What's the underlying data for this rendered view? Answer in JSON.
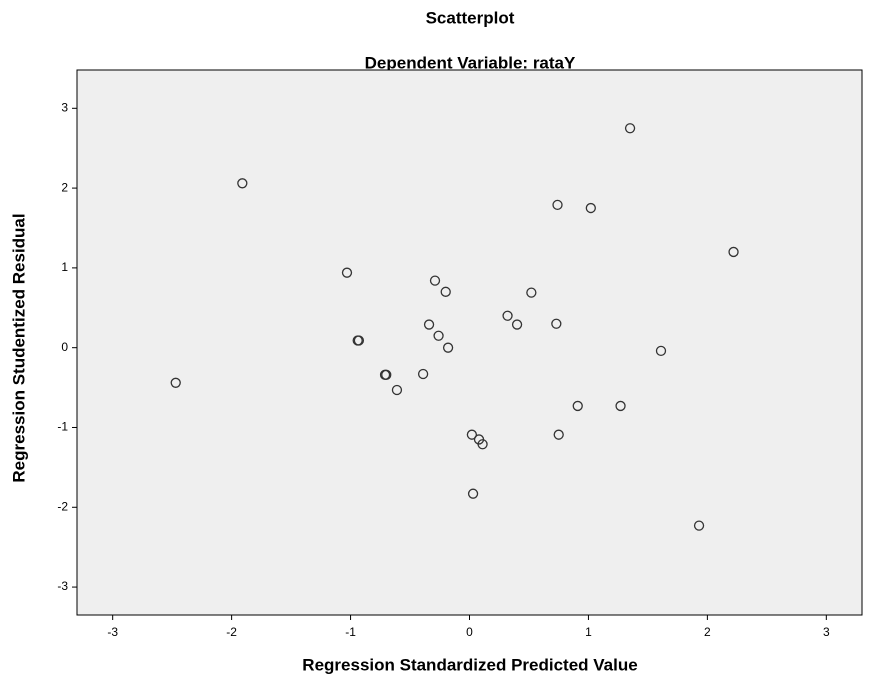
{
  "chart_data": {
    "type": "scatter",
    "title": "Scatterplot",
    "subtitle": "Dependent Variable: rataY",
    "x_label": "Regression Standardized Predicted Value",
    "y_label": "Regression Studentized Residual",
    "x": [
      -2.47,
      -1.91,
      -1.03,
      -0.94,
      -0.93,
      -0.71,
      -0.7,
      -0.61,
      -0.39,
      -0.34,
      -0.29,
      -0.26,
      -0.2,
      -0.18,
      0.02,
      0.03,
      0.08,
      0.11,
      0.32,
      0.4,
      0.52,
      0.73,
      0.74,
      0.75,
      0.91,
      1.02,
      1.27,
      1.35,
      1.61,
      1.93,
      2.22
    ],
    "values": [
      -0.44,
      2.06,
      0.94,
      0.09,
      0.09,
      -0.34,
      -0.34,
      -0.53,
      -0.33,
      0.29,
      0.84,
      0.15,
      0.7,
      0.0,
      -1.09,
      -1.83,
      -1.15,
      -1.21,
      0.4,
      0.29,
      0.69,
      0.3,
      1.79,
      -1.09,
      -0.73,
      1.75,
      -0.73,
      2.75,
      -0.04,
      -2.23,
      1.2
    ],
    "color": "#333333",
    "plot_background": "#efefef",
    "xlim": [
      -3.3,
      3.3
    ],
    "ylim": [
      -3.35,
      3.48
    ],
    "xticks": [
      -3,
      -2,
      -1,
      0,
      1,
      2,
      3
    ],
    "yticks": [
      -3,
      -2,
      -1,
      0,
      1,
      2,
      3
    ]
  }
}
